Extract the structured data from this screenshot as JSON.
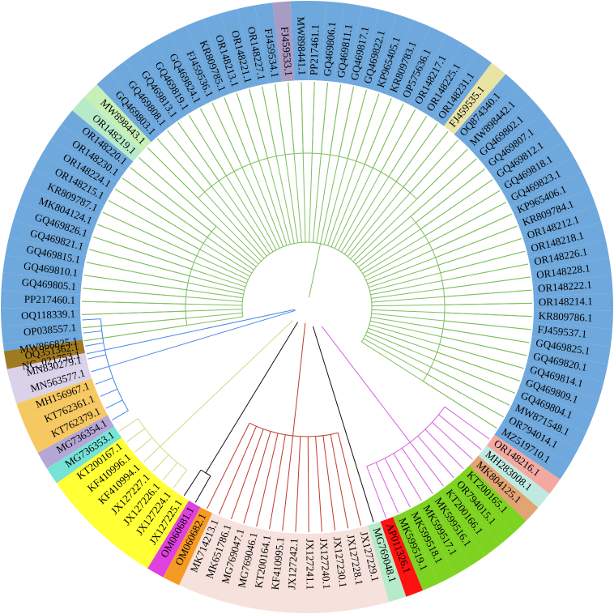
{
  "colors": {
    "blue": "#6fa8dc",
    "red": "#ff1111",
    "yellow": "#ffff33",
    "pink": "#f6e1dc",
    "green": "#7ed321",
    "olive": "#a07a1f",
    "lavender": "#d9d2e9",
    "gold": "#f6c862",
    "purple": "#b4a7d6",
    "cyan": "#76e3d6",
    "magenta": "#e040e0",
    "orange": "#f59a23",
    "mint": "#b7eac8",
    "salmon": "#f4a9a0",
    "sand": "#e8d5a8",
    "lightgreen": "#c7f0b7",
    "greyviolet": "#a89bc4",
    "khaki": "#e9e3a5",
    "lightcyan": "#bfe9e1",
    "brownorange": "#e2a472",
    "branch_green": "#7fbf5f",
    "branch_red": "#c0392b",
    "branch_magenta": "#d65fe0",
    "branch_blue": "#4a86e8",
    "branch_khaki": "#d6d68a",
    "branch_black": "#111111"
  },
  "labels": [
    {
      "text": "NC_021753.1",
      "color": "red"
    },
    {
      "text": "MW866825.1",
      "color": "blue"
    },
    {
      "text": "OP038557.1",
      "color": "blue"
    },
    {
      "text": "OQ118339.1",
      "color": "blue"
    },
    {
      "text": "PP217460.1",
      "color": "blue"
    },
    {
      "text": "GQ469805.1",
      "color": "blue"
    },
    {
      "text": "GQ469810.1",
      "color": "blue"
    },
    {
      "text": "GQ469815.1",
      "color": "blue"
    },
    {
      "text": "GQ469821.1",
      "color": "blue"
    },
    {
      "text": "GQ469826.1",
      "color": "blue"
    },
    {
      "text": "MK804124.1",
      "color": "blue"
    },
    {
      "text": "KR809787.1",
      "color": "blue"
    },
    {
      "text": "OR148215.1",
      "color": "blue"
    },
    {
      "text": "OR148224.1",
      "color": "blue"
    },
    {
      "text": "OR148230.1",
      "color": "blue"
    },
    {
      "text": "OR148220.1",
      "color": "blue"
    },
    {
      "text": "OR148219.1",
      "color": "mint"
    },
    {
      "text": "MW898443.1",
      "color": "lightgreen"
    },
    {
      "text": "GQ469803.1",
      "color": "blue"
    },
    {
      "text": "GQ469808.1",
      "color": "blue"
    },
    {
      "text": "GQ469813.1",
      "color": "blue"
    },
    {
      "text": "GQ469819.1",
      "color": "blue"
    },
    {
      "text": "GQ469824.1",
      "color": "blue"
    },
    {
      "text": "FJ459536.1",
      "color": "blue"
    },
    {
      "text": "KR809785.1",
      "color": "blue"
    },
    {
      "text": "OR148213.1",
      "color": "blue"
    },
    {
      "text": "OR148221.1",
      "color": "blue"
    },
    {
      "text": "OR148227.1",
      "color": "blue"
    },
    {
      "text": "FJ459534.1",
      "color": "blue"
    },
    {
      "text": "FJ459533.1",
      "color": "greyviolet"
    },
    {
      "text": "MW898441.1",
      "color": "blue"
    },
    {
      "text": "PP217461.1",
      "color": "blue"
    },
    {
      "text": "GQ469806.1",
      "color": "blue"
    },
    {
      "text": "GQ469811.1",
      "color": "blue"
    },
    {
      "text": "GQ469817.1",
      "color": "blue"
    },
    {
      "text": "GQ469822.1",
      "color": "blue"
    },
    {
      "text": "KP965405.1",
      "color": "blue"
    },
    {
      "text": "KR809783.1",
      "color": "blue"
    },
    {
      "text": "OP575636.1",
      "color": "blue"
    },
    {
      "text": "OR148217.1",
      "color": "blue"
    },
    {
      "text": "OR148225.1",
      "color": "blue"
    },
    {
      "text": "OR148231.1",
      "color": "blue"
    },
    {
      "text": "FJ459535.1",
      "color": "khaki"
    },
    {
      "text": "OQ874340.1",
      "color": "blue"
    },
    {
      "text": "MW898442.1",
      "color": "blue"
    },
    {
      "text": "GQ469802.1",
      "color": "blue"
    },
    {
      "text": "GQ469807.1",
      "color": "blue"
    },
    {
      "text": "GQ469812.1",
      "color": "blue"
    },
    {
      "text": "GQ469818.1",
      "color": "blue"
    },
    {
      "text": "GQ469823.1",
      "color": "blue"
    },
    {
      "text": "KP965406.1",
      "color": "blue"
    },
    {
      "text": "KR809784.1",
      "color": "blue"
    },
    {
      "text": "OR148212.1",
      "color": "blue"
    },
    {
      "text": "OR148218.1",
      "color": "blue"
    },
    {
      "text": "OR148226.1",
      "color": "blue"
    },
    {
      "text": "OR148228.1",
      "color": "blue"
    },
    {
      "text": "OR148222.1",
      "color": "blue"
    },
    {
      "text": "OR148214.1",
      "color": "blue"
    },
    {
      "text": "KR809786.1",
      "color": "blue"
    },
    {
      "text": "FJ459537.1",
      "color": "blue"
    },
    {
      "text": "GQ469825.1",
      "color": "blue"
    },
    {
      "text": "GQ469820.1",
      "color": "blue"
    },
    {
      "text": "GQ469814.1",
      "color": "blue"
    },
    {
      "text": "GQ469809.1",
      "color": "blue"
    },
    {
      "text": "GQ469804.1",
      "color": "blue"
    },
    {
      "text": "MW871548.1",
      "color": "blue"
    },
    {
      "text": "OR794014.1",
      "color": "blue"
    },
    {
      "text": "MZ519710.1",
      "color": "blue"
    },
    {
      "text": "OR148216.1",
      "color": "salmon"
    },
    {
      "text": "MH283008.1",
      "color": "lightcyan"
    },
    {
      "text": "MK804125.1",
      "color": "brownorange"
    },
    {
      "text": "KT200165.1",
      "color": "green"
    },
    {
      "text": "OR794015.1",
      "color": "green"
    },
    {
      "text": "KT200166.1",
      "color": "green"
    },
    {
      "text": "MK599516.1",
      "color": "green"
    },
    {
      "text": "MK599517.1",
      "color": "green"
    },
    {
      "text": "MK599518.1",
      "color": "green"
    },
    {
      "text": "MK599519.1",
      "color": "green"
    },
    {
      "text": "AP011326.1",
      "color": "red"
    },
    {
      "text": "MG769048.1",
      "color": "mint"
    },
    {
      "text": "JX127229.1",
      "color": "pink"
    },
    {
      "text": "JX127228.1",
      "color": "pink"
    },
    {
      "text": "JX127230.1",
      "color": "pink"
    },
    {
      "text": "JX127240.1",
      "color": "pink"
    },
    {
      "text": "JX127241.1",
      "color": "pink"
    },
    {
      "text": "JX127242.1",
      "color": "pink"
    },
    {
      "text": "KF410995.1",
      "color": "pink"
    },
    {
      "text": "KT200164.1",
      "color": "pink"
    },
    {
      "text": "MG769046.1",
      "color": "pink"
    },
    {
      "text": "MG769047.1",
      "color": "pink"
    },
    {
      "text": "MK651786.1",
      "color": "pink"
    },
    {
      "text": "MK714213.1",
      "color": "pink"
    },
    {
      "text": "OM060682.1",
      "color": "orange"
    },
    {
      "text": "OM060681.1",
      "color": "magenta"
    },
    {
      "text": "JX127225.1",
      "color": "yellow"
    },
    {
      "text": "JX127224.1",
      "color": "yellow"
    },
    {
      "text": "JX127226.1",
      "color": "yellow"
    },
    {
      "text": "JX127227.1",
      "color": "yellow"
    },
    {
      "text": "KF410994.1",
      "color": "yellow"
    },
    {
      "text": "KF410996.1",
      "color": "yellow"
    },
    {
      "text": "KT200167.1",
      "color": "yellow"
    },
    {
      "text": "MG736353.1",
      "color": "cyan"
    },
    {
      "text": "MG736354.1",
      "color": "purple"
    },
    {
      "text": "KT762379.1",
      "color": "gold"
    },
    {
      "text": "KT762361.1",
      "color": "gold"
    },
    {
      "text": "MH156967.1",
      "color": "gold"
    },
    {
      "text": "MN563577.1",
      "color": "lavender"
    },
    {
      "text": "MN830279.1",
      "color": "lavender"
    },
    {
      "text": "OQ351362.1",
      "color": "olive"
    }
  ]
}
